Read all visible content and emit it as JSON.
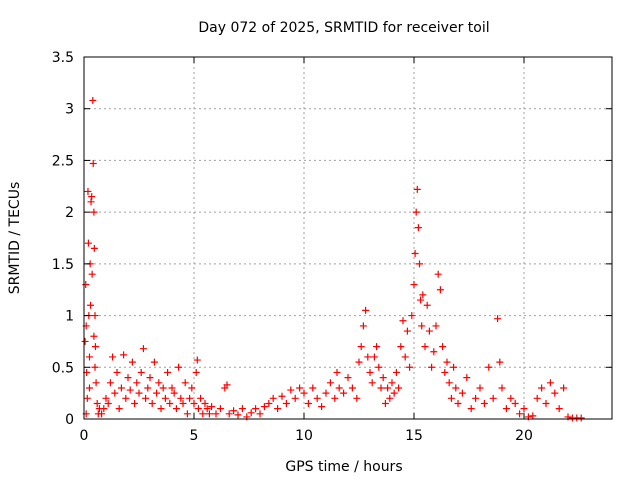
{
  "chart_data": {
    "type": "scatter",
    "title": "Day 072 of 2025, SRMTID for receiver toil",
    "xlabel": "GPS time / hours",
    "ylabel": "SRMTID / TECUs",
    "xlim": [
      0,
      24
    ],
    "ylim": [
      0,
      3.5
    ],
    "x_ticks": [
      0,
      5,
      10,
      15,
      20
    ],
    "x_tick_labels": [
      "0",
      "5",
      "10",
      "15",
      "20"
    ],
    "y_ticks": [
      0,
      0.5,
      1,
      1.5,
      2,
      2.5,
      3,
      3.5
    ],
    "y_tick_labels": [
      "0",
      "0.5",
      "1",
      "1.5",
      "2",
      "2.5",
      "3",
      "3.5"
    ],
    "grid": true,
    "marker": "+",
    "colors": {
      "series": "#ff0000",
      "grid": "#a0a0a0",
      "axis": "#000000"
    },
    "series": [
      {
        "name": "SRMTID",
        "points": [
          [
            0.05,
            0.75
          ],
          [
            0.08,
            1.3
          ],
          [
            0.1,
            0.9
          ],
          [
            0.12,
            0.45
          ],
          [
            0.15,
            0.2
          ],
          [
            0.18,
            2.2
          ],
          [
            0.2,
            1.7
          ],
          [
            0.22,
            1.0
          ],
          [
            0.25,
            0.6
          ],
          [
            0.28,
            1.5
          ],
          [
            0.3,
            1.1
          ],
          [
            0.32,
            2.1
          ],
          [
            0.35,
            2.15
          ],
          [
            0.37,
            1.4
          ],
          [
            0.4,
            3.08
          ],
          [
            0.42,
            2.47
          ],
          [
            0.45,
            2.0
          ],
          [
            0.47,
            1.65
          ],
          [
            0.5,
            1.0
          ],
          [
            0.52,
            0.7
          ],
          [
            0.55,
            0.35
          ],
          [
            0.6,
            0.15
          ],
          [
            0.65,
            0.05
          ],
          [
            0.7,
            0.1
          ],
          [
            0.1,
            0.05
          ],
          [
            0.25,
            0.3
          ],
          [
            0.45,
            0.8
          ],
          [
            0.5,
            0.5
          ],
          [
            0.8,
            0.05
          ],
          [
            0.9,
            0.1
          ],
          [
            1.0,
            0.2
          ],
          [
            1.1,
            0.15
          ],
          [
            1.2,
            0.35
          ],
          [
            1.3,
            0.6
          ],
          [
            1.4,
            0.25
          ],
          [
            1.5,
            0.45
          ],
          [
            1.6,
            0.1
          ],
          [
            1.7,
            0.3
          ],
          [
            1.8,
            0.62
          ],
          [
            1.9,
            0.2
          ],
          [
            2.0,
            0.4
          ],
          [
            2.1,
            0.28
          ],
          [
            2.2,
            0.55
          ],
          [
            2.3,
            0.15
          ],
          [
            2.4,
            0.35
          ],
          [
            2.5,
            0.25
          ],
          [
            2.6,
            0.45
          ],
          [
            2.7,
            0.68
          ],
          [
            2.8,
            0.2
          ],
          [
            2.9,
            0.3
          ],
          [
            3.0,
            0.4
          ],
          [
            3.1,
            0.15
          ],
          [
            3.2,
            0.55
          ],
          [
            3.3,
            0.25
          ],
          [
            3.4,
            0.35
          ],
          [
            3.5,
            0.1
          ],
          [
            3.6,
            0.3
          ],
          [
            3.7,
            0.2
          ],
          [
            3.8,
            0.45
          ],
          [
            3.9,
            0.15
          ],
          [
            4.0,
            0.3
          ],
          [
            4.1,
            0.25
          ],
          [
            4.2,
            0.1
          ],
          [
            4.3,
            0.5
          ],
          [
            4.4,
            0.2
          ],
          [
            4.5,
            0.15
          ],
          [
            4.6,
            0.35
          ],
          [
            4.7,
            0.05
          ],
          [
            4.8,
            0.2
          ],
          [
            4.9,
            0.3
          ],
          [
            5.0,
            0.15
          ],
          [
            5.1,
            0.45
          ],
          [
            5.15,
            0.57
          ],
          [
            5.2,
            0.1
          ],
          [
            5.3,
            0.2
          ],
          [
            5.4,
            0.05
          ],
          [
            5.5,
            0.15
          ],
          [
            5.6,
            0.1
          ],
          [
            5.7,
            0.05
          ],
          [
            5.8,
            0.12
          ],
          [
            6.0,
            0.05
          ],
          [
            6.2,
            0.1
          ],
          [
            6.4,
            0.3
          ],
          [
            6.5,
            0.33
          ],
          [
            6.6,
            0.05
          ],
          [
            6.8,
            0.08
          ],
          [
            7.0,
            0.04
          ],
          [
            7.2,
            0.1
          ],
          [
            7.4,
            0.02
          ],
          [
            7.6,
            0.06
          ],
          [
            7.8,
            0.1
          ],
          [
            8.0,
            0.05
          ],
          [
            8.2,
            0.12
          ],
          [
            8.4,
            0.15
          ],
          [
            8.6,
            0.2
          ],
          [
            8.8,
            0.1
          ],
          [
            9.0,
            0.22
          ],
          [
            9.2,
            0.15
          ],
          [
            9.4,
            0.28
          ],
          [
            9.6,
            0.2
          ],
          [
            9.8,
            0.3
          ],
          [
            10.0,
            0.25
          ],
          [
            10.2,
            0.15
          ],
          [
            10.4,
            0.3
          ],
          [
            10.6,
            0.2
          ],
          [
            10.8,
            0.12
          ],
          [
            11.0,
            0.25
          ],
          [
            11.2,
            0.35
          ],
          [
            11.4,
            0.2
          ],
          [
            11.5,
            0.45
          ],
          [
            11.6,
            0.3
          ],
          [
            11.8,
            0.25
          ],
          [
            12.0,
            0.4
          ],
          [
            12.2,
            0.3
          ],
          [
            12.4,
            0.2
          ],
          [
            12.5,
            0.55
          ],
          [
            12.6,
            0.7
          ],
          [
            12.7,
            0.9
          ],
          [
            12.8,
            1.05
          ],
          [
            12.9,
            0.6
          ],
          [
            13.0,
            0.45
          ],
          [
            13.1,
            0.35
          ],
          [
            13.2,
            0.6
          ],
          [
            13.3,
            0.7
          ],
          [
            13.4,
            0.5
          ],
          [
            13.5,
            0.3
          ],
          [
            13.6,
            0.4
          ],
          [
            13.7,
            0.15
          ],
          [
            13.8,
            0.3
          ],
          [
            13.9,
            0.2
          ],
          [
            14.0,
            0.35
          ],
          [
            14.1,
            0.25
          ],
          [
            14.2,
            0.45
          ],
          [
            14.3,
            0.3
          ],
          [
            14.4,
            0.7
          ],
          [
            14.5,
            0.95
          ],
          [
            14.6,
            0.6
          ],
          [
            14.7,
            0.85
          ],
          [
            14.8,
            0.5
          ],
          [
            14.9,
            1.0
          ],
          [
            15.0,
            1.3
          ],
          [
            15.05,
            1.6
          ],
          [
            15.1,
            2.0
          ],
          [
            15.15,
            2.22
          ],
          [
            15.2,
            1.85
          ],
          [
            15.25,
            1.5
          ],
          [
            15.3,
            1.15
          ],
          [
            15.35,
            0.9
          ],
          [
            15.4,
            1.2
          ],
          [
            15.5,
            0.7
          ],
          [
            15.6,
            1.1
          ],
          [
            15.7,
            0.85
          ],
          [
            15.8,
            0.5
          ],
          [
            15.9,
            0.65
          ],
          [
            16.0,
            0.9
          ],
          [
            16.1,
            1.4
          ],
          [
            16.2,
            1.25
          ],
          [
            16.3,
            0.7
          ],
          [
            16.4,
            0.45
          ],
          [
            16.5,
            0.55
          ],
          [
            16.6,
            0.35
          ],
          [
            16.7,
            0.2
          ],
          [
            16.8,
            0.5
          ],
          [
            16.9,
            0.3
          ],
          [
            17.0,
            0.15
          ],
          [
            17.2,
            0.25
          ],
          [
            17.4,
            0.4
          ],
          [
            17.6,
            0.1
          ],
          [
            17.8,
            0.2
          ],
          [
            18.0,
            0.3
          ],
          [
            18.2,
            0.15
          ],
          [
            18.4,
            0.5
          ],
          [
            18.6,
            0.2
          ],
          [
            18.8,
            0.97
          ],
          [
            18.9,
            0.55
          ],
          [
            19.0,
            0.3
          ],
          [
            19.2,
            0.1
          ],
          [
            19.4,
            0.2
          ],
          [
            19.6,
            0.15
          ],
          [
            19.8,
            0.05
          ],
          [
            20.0,
            0.1
          ],
          [
            20.2,
            0.02
          ],
          [
            20.4,
            0.03
          ],
          [
            20.6,
            0.2
          ],
          [
            20.8,
            0.3
          ],
          [
            21.0,
            0.15
          ],
          [
            21.2,
            0.35
          ],
          [
            21.4,
            0.25
          ],
          [
            21.6,
            0.1
          ],
          [
            21.8,
            0.3
          ],
          [
            22.0,
            0.02
          ],
          [
            22.2,
            0.01
          ],
          [
            22.4,
            0.01
          ],
          [
            22.6,
            0.01
          ]
        ]
      }
    ]
  }
}
